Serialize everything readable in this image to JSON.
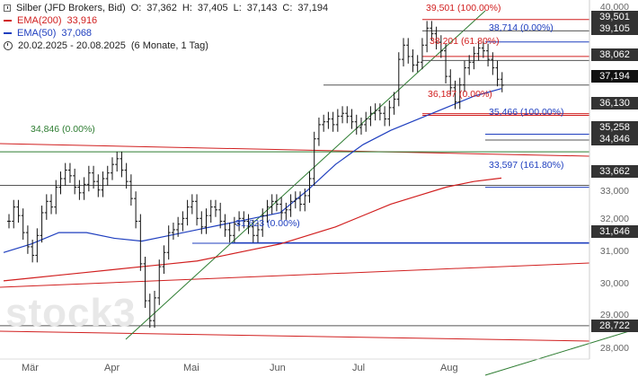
{
  "header": {
    "instrument": "Silber (JFD Brokers, Bid)",
    "ohlc": {
      "open_label": "O:",
      "open": "37,362",
      "high_label": "H:",
      "high": "37,405",
      "low_label": "L:",
      "low": "37,143",
      "close_label": "C:",
      "close": "37,194"
    },
    "ema200": {
      "label": "EMA(200)",
      "value": "33,916",
      "color": "#d11f1f"
    },
    "ema50": {
      "label": "EMA(50)",
      "value": "37,068",
      "color": "#1f3fbf"
    },
    "range": "20.02.2025 - 20.08.2025",
    "period": "(6 Monate, 1 Tag)"
  },
  "watermark": "stock3",
  "fib_labels": [
    {
      "text": "39,501 (100.00%)",
      "color": "#d11f1f"
    },
    {
      "text": "38,714 (0.00%)",
      "color": "#1f3fbf"
    },
    {
      "text": "38,201 (61.80%)",
      "color": "#d11f1f"
    },
    {
      "text": "36,187 (0.00%)",
      "color": "#d11f1f"
    },
    {
      "text": "35,466 (100.00%)",
      "color": "#1f3fbf"
    },
    {
      "text": "34,846 (0.00%)",
      "color": "#2e7d32"
    },
    {
      "text": "33,597 (161.80%)",
      "color": "#1f3fbf"
    },
    {
      "text": "31,623 (0.00%)",
      "color": "#1f3fbf"
    }
  ],
  "price_tags": [
    {
      "text": "39,501"
    },
    {
      "text": "39,105"
    },
    {
      "text": "38,062"
    },
    {
      "text": "37,194"
    },
    {
      "text": "36,130"
    },
    {
      "text": "35,258"
    },
    {
      "text": "34,846"
    },
    {
      "text": "33,662"
    },
    {
      "text": "31,646"
    },
    {
      "text": "28,722"
    }
  ],
  "y_axis_ticks": [
    "40,000",
    "33,000",
    "32,000",
    "31,000",
    "30,000",
    "29,000",
    "28,000"
  ],
  "x_axis_months": [
    "Mär",
    "Apr",
    "Mai",
    "Jun",
    "Jul",
    "Aug"
  ],
  "chart_data": {
    "type": "ohlc",
    "x_range": [
      "20.02.2025",
      "20.08.2025"
    ],
    "ylim": [
      27.8,
      40.0
    ],
    "candles_close": [
      32.4,
      32.9,
      32.6,
      32.0,
      31.5,
      31.2,
      31.9,
      32.7,
      33.1,
      32.9,
      33.6,
      33.9,
      34.2,
      34.0,
      33.6,
      33.4,
      33.7,
      34.1,
      33.8,
      33.5,
      33.9,
      34.1,
      34.4,
      34.6,
      34.2,
      33.8,
      33.2,
      32.4,
      30.9,
      29.6,
      28.9,
      29.7,
      30.8,
      31.3,
      32.0,
      32.1,
      32.3,
      32.5,
      32.9,
      33.1,
      32.5,
      32.2,
      32.6,
      32.9,
      32.8,
      32.4,
      32.1,
      31.9,
      32.3,
      32.5,
      32.4,
      32.2,
      31.9,
      32.1,
      32.6,
      32.9,
      33.1,
      33.0,
      32.7,
      32.8,
      33.1,
      33.2,
      33.0,
      33.3,
      33.9,
      35.3,
      35.8,
      35.9,
      36.0,
      35.8,
      36.1,
      36.2,
      36.1,
      35.9,
      35.7,
      35.8,
      36.0,
      36.2,
      36.3,
      36.2,
      36.0,
      36.4,
      36.7,
      38.1,
      38.6,
      38.2,
      37.9,
      38.0,
      38.6,
      39.2,
      39.0,
      38.7,
      38.4,
      37.5,
      37.1,
      36.6,
      37.2,
      37.8,
      38.0,
      38.3,
      38.5,
      38.4,
      38.1,
      37.8,
      37.4,
      37.19
    ],
    "ema200_values": [
      30.3,
      30.4,
      30.5,
      30.6,
      30.7,
      30.8,
      30.9,
      31.0,
      31.2,
      31.4,
      31.6,
      31.9,
      32.2,
      32.6,
      33.0,
      33.3,
      33.6,
      33.8,
      33.92
    ],
    "ema50_values": [
      31.3,
      31.6,
      32.0,
      32.0,
      31.8,
      31.7,
      31.9,
      32.1,
      32.3,
      32.5,
      32.7,
      33.5,
      34.4,
      35.1,
      35.6,
      36.0,
      36.4,
      36.8,
      37.07
    ],
    "levels": [
      39.501,
      39.105,
      38.714,
      38.201,
      38.062,
      37.194,
      36.187,
      36.13,
      35.466,
      35.258,
      34.846,
      33.662,
      33.597,
      31.646,
      31.623,
      28.722
    ],
    "grid": false,
    "legend": "top-left"
  }
}
